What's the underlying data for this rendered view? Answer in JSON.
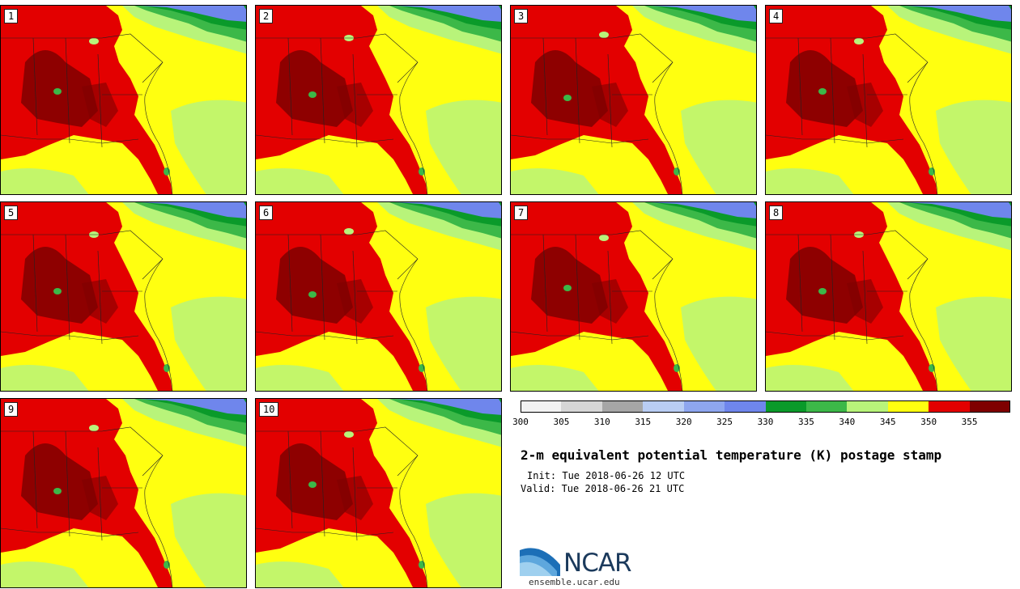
{
  "panels": [
    {
      "label": "1"
    },
    {
      "label": "2"
    },
    {
      "label": "3"
    },
    {
      "label": "4"
    },
    {
      "label": "5"
    },
    {
      "label": "6"
    },
    {
      "label": "7"
    },
    {
      "label": "8"
    },
    {
      "label": "9"
    },
    {
      "label": "10"
    }
  ],
  "colorbar": {
    "ticks": [
      "300",
      "305",
      "310",
      "315",
      "320",
      "325",
      "330",
      "335",
      "340",
      "345",
      "350",
      "355"
    ],
    "colors": [
      "#f2f2f2",
      "#d6d6d6",
      "#a6a6a6",
      "#b9cdf3",
      "#8ea6ef",
      "#6f86ec",
      "#0a9a2a",
      "#3cb848",
      "#b8f47a",
      "#ffff10",
      "#e30000",
      "#7f0000"
    ]
  },
  "title": "2-m equivalent potential temperature (K) postage stamp",
  "init": "Init: Tue 2018-06-26 12 UTC",
  "valid": "Valid: Tue 2018-06-26 21 UTC",
  "logo": {
    "text": "NCAR"
  },
  "site": "ensemble.ucar.edu"
}
